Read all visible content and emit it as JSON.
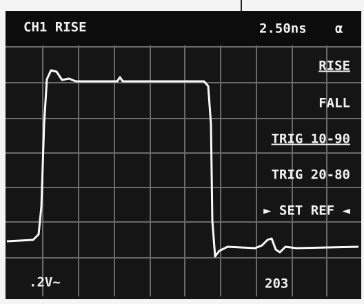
{
  "header": {
    "channel": "CH1 RISE",
    "timebase": "2.50ns",
    "marker": "α"
  },
  "menu": [
    "RISE",
    "FALL",
    "TRIG 10-90",
    "TRIG 20-80",
    "► SET REF ◄"
  ],
  "footer": {
    "volts": ".2V~",
    "right": "203"
  }
}
